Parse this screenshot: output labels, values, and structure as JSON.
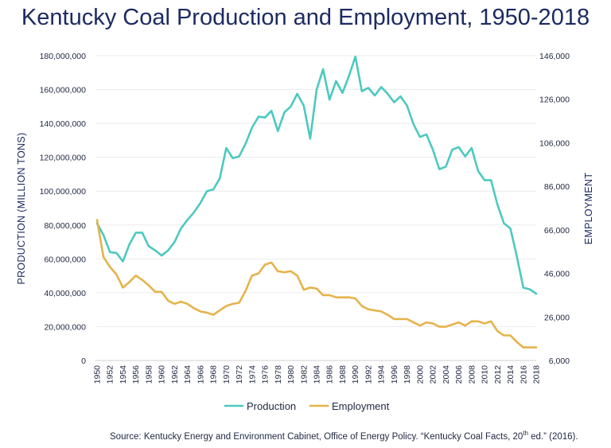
{
  "chart_data": {
    "type": "line",
    "title": "Kentucky Coal Production and Employment, 1950-2018",
    "ylabel": "PRODUCTION (MILLION TONS)",
    "y2label": "EMPLOYMENT",
    "ylim": [
      0,
      180000000
    ],
    "y2lim": [
      6000,
      146000
    ],
    "y_ticks": [
      "0",
      "20,000,000",
      "40,000,000",
      "60,000,000",
      "80,000,000",
      "100,000,000",
      "120,000,000",
      "140,000,000",
      "160,000,000",
      "180,000,000"
    ],
    "y2_ticks": [
      "6,000",
      "26,000",
      "46,000",
      "66,000",
      "86,000",
      "106,000",
      "126,000",
      "146,000"
    ],
    "x_ticks": [
      "1950",
      "1952",
      "1954",
      "1956",
      "1958",
      "1960",
      "1962",
      "1964",
      "1966",
      "1968",
      "1970",
      "1972",
      "1974",
      "1976",
      "1978",
      "1980",
      "1982",
      "1984",
      "1986",
      "1988",
      "1990",
      "1992",
      "1994",
      "1996",
      "1998",
      "2000",
      "2002",
      "2004",
      "2006",
      "2008",
      "2010",
      "2012",
      "2014",
      "2016",
      "2018"
    ],
    "grid": true,
    "legend": "bottom",
    "x": [
      1950,
      1951,
      1952,
      1953,
      1954,
      1955,
      1956,
      1957,
      1958,
      1959,
      1960,
      1961,
      1962,
      1963,
      1964,
      1965,
      1966,
      1967,
      1968,
      1969,
      1970,
      1971,
      1972,
      1973,
      1974,
      1975,
      1976,
      1977,
      1978,
      1979,
      1980,
      1981,
      1982,
      1983,
      1984,
      1985,
      1986,
      1987,
      1988,
      1989,
      1990,
      1991,
      1992,
      1993,
      1994,
      1995,
      1996,
      1997,
      1998,
      1999,
      2000,
      2001,
      2002,
      2003,
      2004,
      2005,
      2006,
      2007,
      2008,
      2009,
      2010,
      2011,
      2012,
      2013,
      2014,
      2015,
      2016,
      2017,
      2018
    ],
    "series": [
      {
        "name": "Production",
        "color": "#4cc9c0",
        "axis": "left",
        "values": [
          81000000,
          74000000,
          64000000,
          63500000,
          58500000,
          68500000,
          75500000,
          75500000,
          67500000,
          65000000,
          62000000,
          65000000,
          70000000,
          78000000,
          83000000,
          87500000,
          93000000,
          100000000,
          101000000,
          107500000,
          125500000,
          119500000,
          120500000,
          128000000,
          137500000,
          144000000,
          143500000,
          147500000,
          135500000,
          146500000,
          150000000,
          157500000,
          150500000,
          131000000,
          160000000,
          172000000,
          154000000,
          165000000,
          158000000,
          168000000,
          179500000,
          159000000,
          161000000,
          156500000,
          161500000,
          157500000,
          152500000,
          156000000,
          150500000,
          139500000,
          132000000,
          133500000,
          124500000,
          113000000,
          114500000,
          124500000,
          126000000,
          120500000,
          125500000,
          112000000,
          106500000,
          106500000,
          92000000,
          81000000,
          78000000,
          61500000,
          43000000,
          42000000,
          39500000
        ]
      },
      {
        "name": "Employment",
        "color": "#e6b34a",
        "axis": "right",
        "values": [
          70500,
          53500,
          49000,
          45500,
          39500,
          42000,
          45000,
          43000,
          40500,
          37500,
          37500,
          33500,
          32000,
          33000,
          32000,
          30000,
          28500,
          28000,
          27000,
          29000,
          31000,
          32000,
          32500,
          38000,
          45000,
          46000,
          50000,
          51000,
          47000,
          46500,
          47000,
          45000,
          38500,
          39500,
          39000,
          36000,
          36000,
          35000,
          35000,
          35000,
          34500,
          31000,
          29500,
          29000,
          28500,
          27000,
          25000,
          25000,
          25000,
          23500,
          22000,
          23500,
          23000,
          21500,
          21500,
          22500,
          23500,
          22000,
          24000,
          24000,
          23000,
          24000,
          19500,
          17500,
          17500,
          14500,
          12000,
          12000,
          12000
        ]
      }
    ],
    "source": {
      "prefix": "Source: Kentucky Energy and Environment Cabinet, Office of Energy Policy. “Kentucky Coal Facts, 20",
      "sup": "th",
      "suffix": " ed.” (2016)."
    }
  }
}
